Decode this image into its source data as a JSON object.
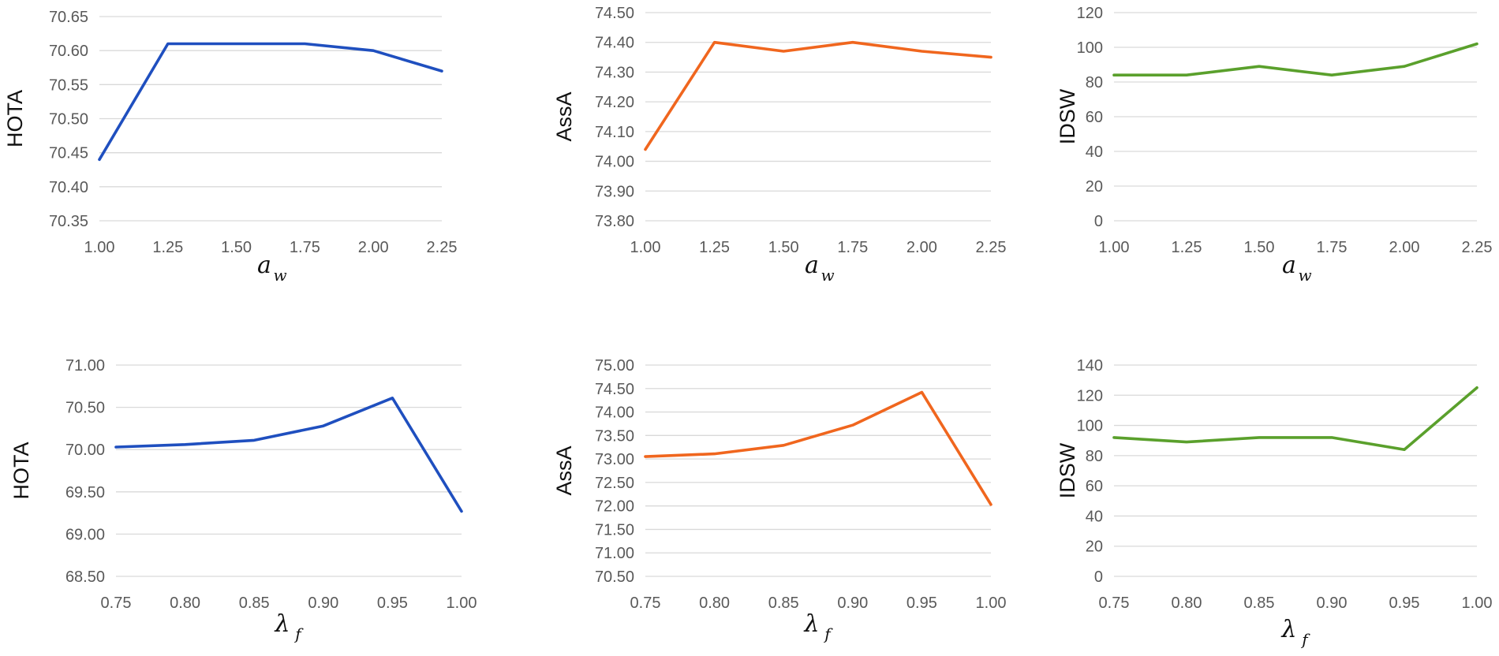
{
  "chart_data": [
    {
      "type": "line",
      "ylabel": "HOTA",
      "xlabel": "a",
      "xlabel_sub": "w",
      "x": [
        "1.00",
        "1.25",
        "1.50",
        "1.75",
        "2.00",
        "2.25"
      ],
      "y_ticks": [
        "70.35",
        "70.40",
        "70.45",
        "70.50",
        "70.55",
        "70.60",
        "70.65"
      ],
      "ylim": [
        70.35,
        70.65
      ],
      "series": [
        {
          "values": [
            70.44,
            70.61,
            70.61,
            70.61,
            70.6,
            70.57
          ],
          "color": "#1f4fbf"
        }
      ],
      "grid": true
    },
    {
      "type": "line",
      "ylabel": "AssA",
      "xlabel": "a",
      "xlabel_sub": "w",
      "x": [
        "1.00",
        "1.25",
        "1.50",
        "1.75",
        "2.00",
        "2.25"
      ],
      "y_ticks": [
        "73.80",
        "73.90",
        "74.00",
        "74.10",
        "74.20",
        "74.30",
        "74.40",
        "74.50"
      ],
      "ylim": [
        73.8,
        74.5
      ],
      "series": [
        {
          "values": [
            74.04,
            74.4,
            74.37,
            74.4,
            74.37,
            74.35
          ],
          "color": "#f0661e"
        }
      ],
      "grid": true
    },
    {
      "type": "line",
      "ylabel": "IDSW",
      "xlabel": "a",
      "xlabel_sub": "w",
      "x": [
        "1.00",
        "1.25",
        "1.50",
        "1.75",
        "2.00",
        "2.25"
      ],
      "y_ticks": [
        "0",
        "20",
        "40",
        "60",
        "80",
        "100",
        "120"
      ],
      "ylim": [
        0,
        120
      ],
      "series": [
        {
          "values": [
            84,
            84,
            89,
            84,
            89,
            102
          ],
          "color": "#5aa02c"
        }
      ],
      "grid": true
    },
    {
      "type": "line",
      "ylabel": "HOTA",
      "xlabel": "λ",
      "xlabel_sub": "f",
      "x": [
        "0.75",
        "0.80",
        "0.85",
        "0.90",
        "0.95",
        "1.00"
      ],
      "y_ticks": [
        "68.50",
        "69.00",
        "69.50",
        "70.00",
        "70.50",
        "71.00"
      ],
      "ylim": [
        68.5,
        71.0
      ],
      "series": [
        {
          "values": [
            70.03,
            70.06,
            70.11,
            70.28,
            70.61,
            69.27
          ],
          "color": "#1f4fbf"
        }
      ],
      "grid": true
    },
    {
      "type": "line",
      "ylabel": "AssA",
      "xlabel": "λ",
      "xlabel_sub": "f",
      "x": [
        "0.75",
        "0.80",
        "0.85",
        "0.90",
        "0.95",
        "1.00"
      ],
      "y_ticks": [
        "70.50",
        "71.00",
        "71.50",
        "72.00",
        "72.50",
        "73.00",
        "73.50",
        "74.00",
        "74.50",
        "75.00"
      ],
      "ylim": [
        70.5,
        75.0
      ],
      "series": [
        {
          "values": [
            73.05,
            73.11,
            73.29,
            73.72,
            74.42,
            72.03
          ],
          "color": "#f0661e"
        }
      ],
      "grid": true
    },
    {
      "type": "line",
      "ylabel": "IDSW",
      "xlabel": "λ",
      "xlabel_sub": "f",
      "x": [
        "0.75",
        "0.80",
        "0.85",
        "0.90",
        "0.95",
        "1.00"
      ],
      "y_ticks": [
        "0",
        "20",
        "40",
        "60",
        "80",
        "100",
        "120",
        "140"
      ],
      "ylim": [
        0,
        140
      ],
      "series": [
        {
          "values": [
            92,
            89,
            92,
            92,
            84,
            125
          ],
          "color": "#5aa02c"
        }
      ],
      "grid": true
    }
  ]
}
